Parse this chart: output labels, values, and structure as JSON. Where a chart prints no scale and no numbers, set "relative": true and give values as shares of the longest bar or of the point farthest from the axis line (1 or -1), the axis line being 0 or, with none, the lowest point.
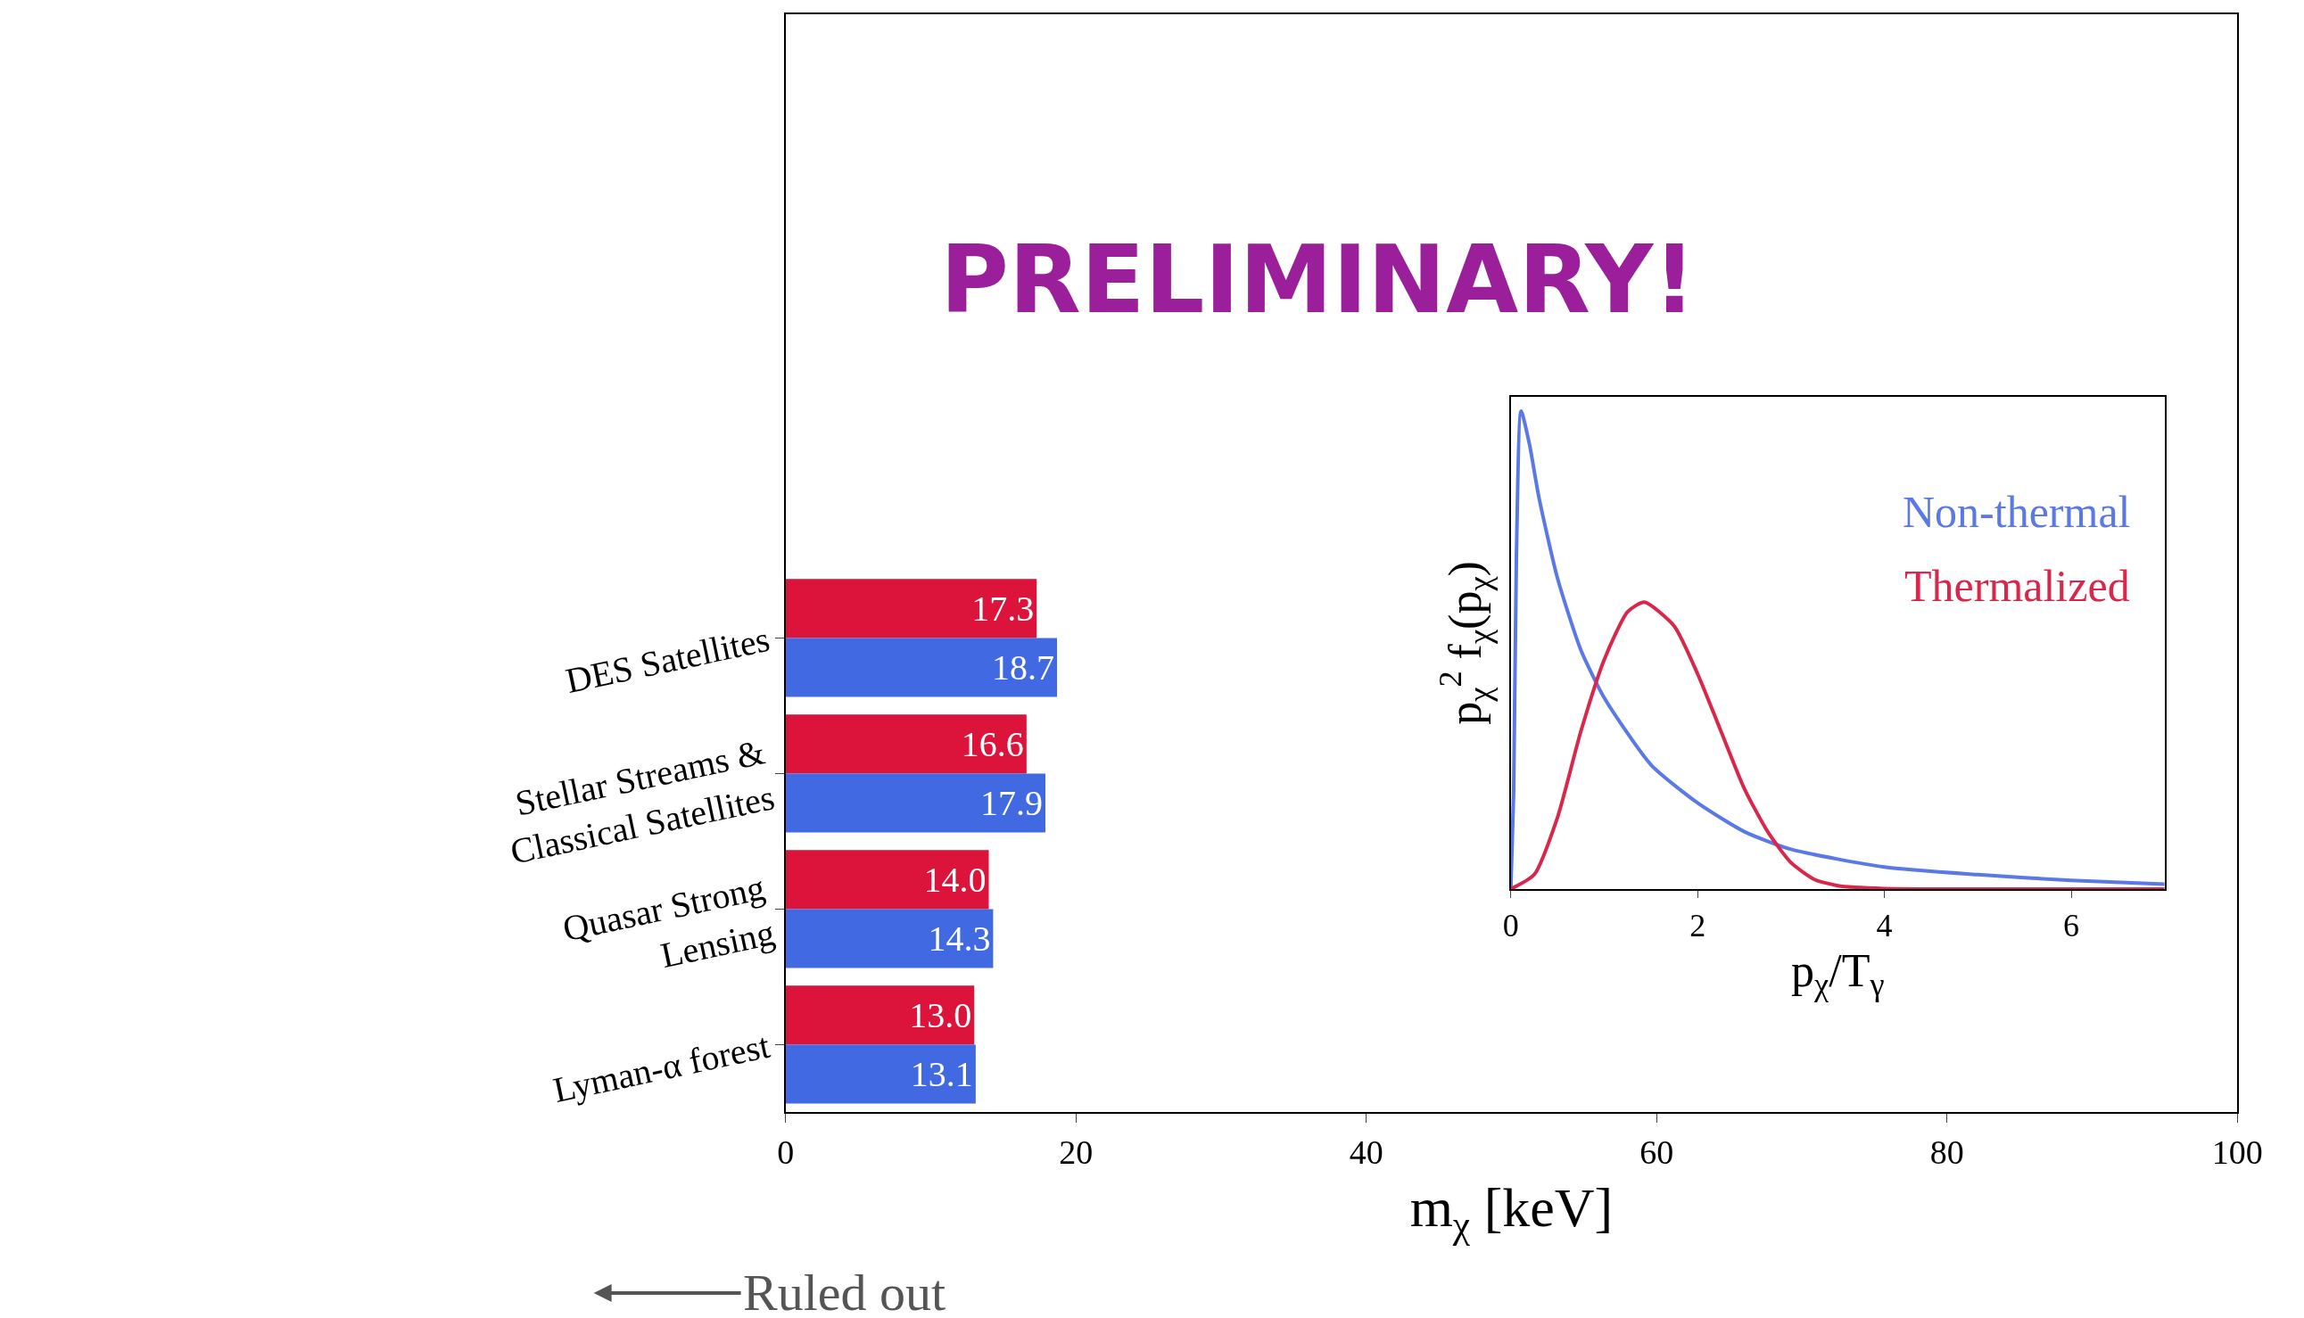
{
  "chart_data": [
    {
      "type": "bar",
      "orientation": "horizontal",
      "categories": [
        "DES Satellites",
        "Stellar Streams & Classical Satellites",
        "Quasar Strong Lensing",
        "Lyman-α forest"
      ],
      "series": [
        {
          "color": "#dc143c",
          "values": [
            17.3,
            16.6,
            14.0,
            13.0
          ],
          "value_labels": [
            "17.3",
            "16.6",
            "14.0",
            "13.0"
          ]
        },
        {
          "color": "#4169e1",
          "values": [
            18.7,
            17.9,
            14.3,
            13.1
          ],
          "value_labels": [
            "18.7",
            "17.9",
            "14.3",
            "13.1"
          ]
        }
      ],
      "xlim": [
        0,
        100
      ],
      "xticks": [
        0,
        20,
        40,
        60,
        80,
        100
      ],
      "xlabel": "m$_{χ}$ [keV]",
      "annotations": [
        "PRELIMINARY!",
        "Ruled out"
      ]
    },
    {
      "type": "line",
      "relative": true,
      "xlim": [
        0,
        7
      ],
      "xticks": [
        0,
        2,
        4,
        6
      ],
      "xlabel": "p$_{χ}$/T$_{γ}$",
      "ylabel": "p$_{χ}$$^{2}$ f$_{χ}$(p$_{χ}$)",
      "legend": "top right",
      "tick_labels": "x",
      "series": [
        {
          "name": "Non-thermal",
          "color": "#5a78e6",
          "x": [
            0,
            0.03,
            0.06,
            0.11,
            0.2,
            0.3,
            0.5,
            0.75,
            1.0,
            1.5,
            2.0,
            2.5,
            3.0,
            4.0,
            5.0,
            6.0,
            7.0
          ],
          "values": [
            0,
            0.2,
            0.7,
            1.0,
            0.93,
            0.82,
            0.65,
            0.5,
            0.4,
            0.26,
            0.18,
            0.12,
            0.083,
            0.046,
            0.03,
            0.018,
            0.01
          ]
        },
        {
          "name": "Thermalized",
          "color": "#d9264b",
          "x": [
            0,
            0.25,
            0.5,
            0.75,
            1.0,
            1.25,
            1.43,
            1.75,
            2.0,
            2.25,
            2.5,
            2.75,
            3.0,
            3.25,
            3.5,
            4.0,
            5.0,
            7.0
          ],
          "values": [
            0,
            0.03,
            0.15,
            0.33,
            0.48,
            0.58,
            0.6,
            0.55,
            0.45,
            0.33,
            0.21,
            0.12,
            0.055,
            0.02,
            0.007,
            0.001,
            0,
            0
          ]
        }
      ]
    }
  ]
}
